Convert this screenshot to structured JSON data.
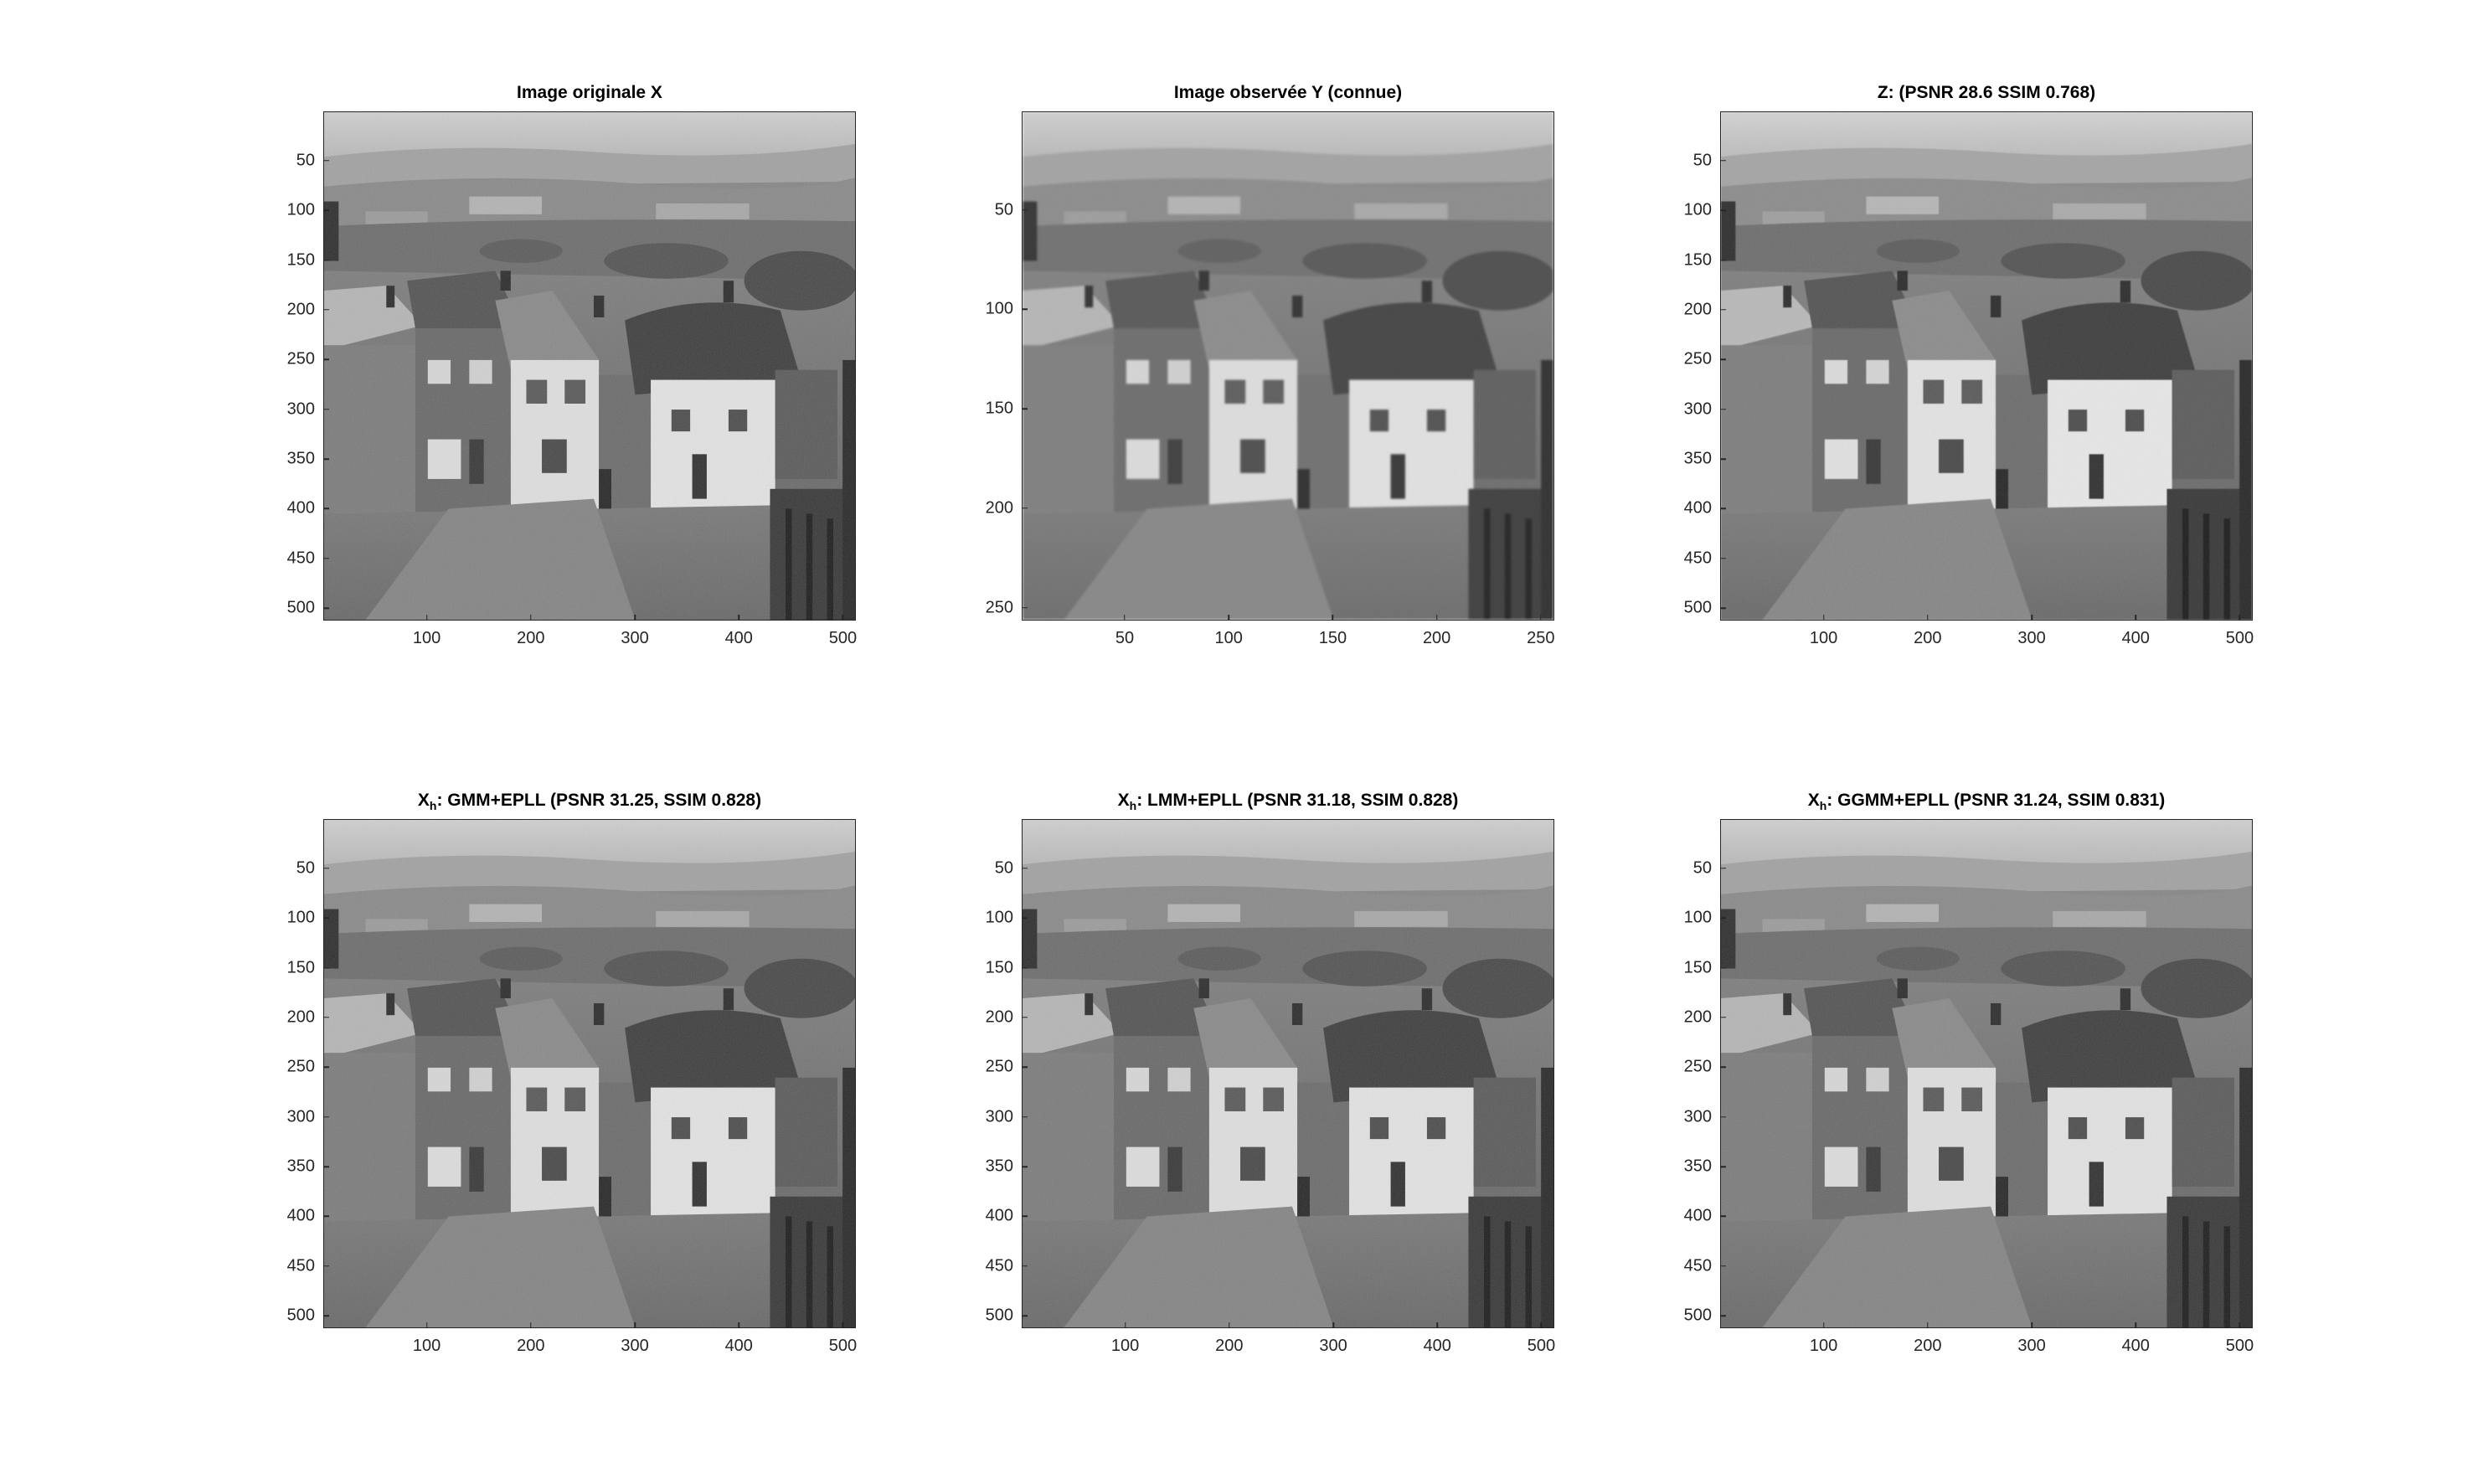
{
  "panels": [
    {
      "id": "original",
      "title": "Image originale X",
      "size": 512,
      "yticks": [
        "50",
        "100",
        "150",
        "200",
        "250",
        "300",
        "350",
        "400",
        "450",
        "500"
      ],
      "xticks": [
        "100",
        "200",
        "300",
        "400",
        "500"
      ]
    },
    {
      "id": "observed",
      "title": "Image observée Y (connue)",
      "size": 256,
      "yticks": [
        "50",
        "100",
        "150",
        "200",
        "250"
      ],
      "xticks": [
        "50",
        "100",
        "150",
        "200",
        "250"
      ]
    },
    {
      "id": "z",
      "title": "Z: (PSNR 28.6 SSIM 0.768)",
      "size": 512,
      "yticks": [
        "50",
        "100",
        "150",
        "200",
        "250",
        "300",
        "350",
        "400",
        "450",
        "500"
      ],
      "xticks": [
        "100",
        "200",
        "300",
        "400",
        "500"
      ]
    },
    {
      "id": "gmm",
      "title_main": "X",
      "title_sub": "h",
      "title_rest": ": GMM+EPLL (PSNR 31.25, SSIM 0.828)",
      "size": 512,
      "yticks": [
        "50",
        "100",
        "150",
        "200",
        "250",
        "300",
        "350",
        "400",
        "450",
        "500"
      ],
      "xticks": [
        "100",
        "200",
        "300",
        "400",
        "500"
      ]
    },
    {
      "id": "lmm",
      "title_main": "X",
      "title_sub": "h",
      "title_rest": ": LMM+EPLL (PSNR 31.18, SSIM 0.828)",
      "size": 512,
      "yticks": [
        "50",
        "100",
        "150",
        "200",
        "250",
        "300",
        "350",
        "400",
        "450",
        "500"
      ],
      "xticks": [
        "100",
        "200",
        "300",
        "400",
        "500"
      ]
    },
    {
      "id": "ggmm",
      "title_main": "X",
      "title_sub": "h",
      "title_rest": ": GGMM+EPLL (PSNR 31.24, SSIM 0.831)",
      "size": 512,
      "yticks": [
        "50",
        "100",
        "150",
        "200",
        "250",
        "300",
        "350",
        "400",
        "450",
        "500"
      ],
      "xticks": [
        "100",
        "200",
        "300",
        "400",
        "500"
      ]
    }
  ],
  "scene_icon": "grayscale-village-hillside-photo"
}
